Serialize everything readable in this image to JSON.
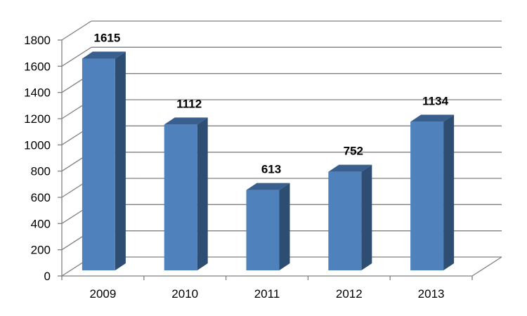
{
  "chart_data": {
    "type": "bar",
    "title": "",
    "xlabel": "",
    "ylabel": "",
    "categories": [
      "2009",
      "2010",
      "2011",
      "2012",
      "2013"
    ],
    "values": [
      1615,
      1112,
      613,
      752,
      1134
    ],
    "data_labels": [
      "1615",
      "1112",
      "613",
      "752",
      "1134"
    ],
    "ylim": [
      0,
      1800
    ],
    "yticks": [
      0,
      200,
      400,
      600,
      800,
      1000,
      1200,
      1400,
      1600,
      1800
    ],
    "ytick_labels": [
      "0",
      "200",
      "400",
      "600",
      "800",
      "1000",
      "1200",
      "1400",
      "1600",
      "1800"
    ],
    "grid": true,
    "legend": "none",
    "style": "3d-column",
    "colors": {
      "bar_front": "#4f81bd",
      "bar_side": "#2e4d73",
      "bar_top": "#395f8e",
      "grid": "#808080",
      "axis": "#808080"
    }
  }
}
